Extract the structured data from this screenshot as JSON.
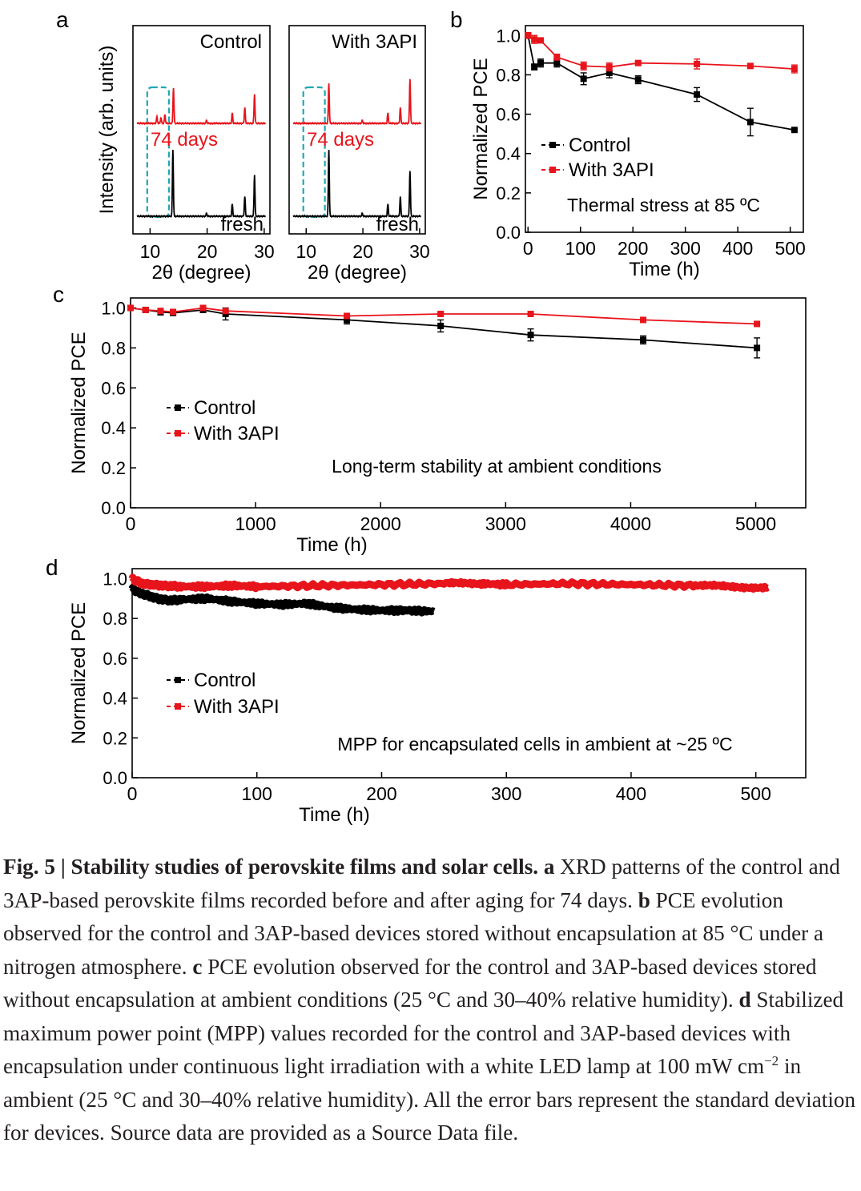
{
  "colors": {
    "control": "#000000",
    "with3api": "#e8141b",
    "highlight": "#22a6b3"
  },
  "panel_labels": {
    "a": "a",
    "b": "b",
    "c": "c",
    "d": "d"
  },
  "chart_data": [
    {
      "panel": "a",
      "type": "line",
      "subtype": "xrd_pattern",
      "title": "Control",
      "xlabel": "2θ (degree)",
      "ylabel": "Intensity (arb. units)",
      "xlim": [
        7,
        31
      ],
      "xticks": [
        "10",
        "20",
        "30"
      ],
      "series": [
        {
          "name": "74 days",
          "label": "74 days",
          "color": "#e8141b",
          "baseline": 1,
          "peaks": [
            [
              11.2,
              0.07
            ],
            [
              11.9,
              0.06
            ],
            [
              12.6,
              0.09
            ],
            [
              14.1,
              0.38
            ],
            [
              19.9,
              0.03
            ],
            [
              24.4,
              0.11
            ],
            [
              26.6,
              0.17
            ],
            [
              28.3,
              0.31
            ]
          ]
        },
        {
          "name": "fresh",
          "label": "fresh",
          "color": "#000000",
          "baseline": 0,
          "peaks": [
            [
              14.0,
              0.7
            ],
            [
              19.9,
              0.03
            ],
            [
              24.4,
              0.13
            ],
            [
              26.6,
              0.21
            ],
            [
              28.3,
              0.44
            ]
          ]
        }
      ],
      "highlight_region": [
        9.5,
        13.3
      ]
    },
    {
      "panel": "a",
      "type": "line",
      "subtype": "xrd_pattern",
      "title": "With 3API",
      "xlabel": "2θ (degree)",
      "xlim": [
        7,
        31
      ],
      "xticks": [
        "10",
        "20",
        "30"
      ],
      "series": [
        {
          "name": "74 days",
          "label": "74 days",
          "color": "#e8141b",
          "baseline": 1,
          "peaks": [
            [
              14.0,
              0.42
            ],
            [
              19.9,
              0.03
            ],
            [
              24.4,
              0.11
            ],
            [
              26.6,
              0.17
            ],
            [
              28.3,
              0.47
            ]
          ]
        },
        {
          "name": "fresh",
          "label": "fresh",
          "color": "#000000",
          "baseline": 0,
          "peaks": [
            [
              14.0,
              0.7
            ],
            [
              19.9,
              0.03
            ],
            [
              24.4,
              0.13
            ],
            [
              26.6,
              0.21
            ],
            [
              28.3,
              0.48
            ]
          ]
        }
      ],
      "highlight_region": [
        9.5,
        13.3
      ]
    },
    {
      "panel": "b",
      "type": "line",
      "xlabel": "Time (h)",
      "ylabel": "Normalized PCE",
      "xlim": [
        -5,
        525
      ],
      "ylim": [
        0,
        1.05
      ],
      "xticks": [
        0,
        100,
        200,
        300,
        400,
        500
      ],
      "yticks": [
        "0.0",
        "0.2",
        "0.4",
        "0.6",
        "0.8",
        "1.0"
      ],
      "annotation": "Thermal stress at 85 ºC",
      "series": [
        {
          "name": "Control",
          "color": "#000000",
          "x": [
            0,
            12,
            24,
            55,
            106,
            155,
            210,
            322,
            424,
            508
          ],
          "y": [
            1.0,
            0.84,
            0.86,
            0.86,
            0.78,
            0.81,
            0.775,
            0.7,
            0.56,
            0.52
          ],
          "err": [
            0.01,
            0.015,
            0.02,
            0.02,
            0.03,
            0.025,
            0.02,
            0.035,
            0.07,
            0.005
          ]
        },
        {
          "name": "With 3API",
          "color": "#e8141b",
          "x": [
            0,
            12,
            24,
            55,
            106,
            155,
            210,
            322,
            424,
            508
          ],
          "y": [
            1.0,
            0.98,
            0.975,
            0.89,
            0.845,
            0.84,
            0.86,
            0.855,
            0.845,
            0.83
          ],
          "err": [
            0.015,
            0.02,
            0.01,
            0.015,
            0.02,
            0.02,
            0.01,
            0.025,
            0.01,
            0.02
          ]
        }
      ]
    },
    {
      "panel": "c",
      "type": "line",
      "xlabel": "Time (h)",
      "ylabel": "Normalized PCE",
      "xlim": [
        0,
        5400
      ],
      "ylim": [
        0,
        1.05
      ],
      "xticks": [
        0,
        1000,
        2000,
        3000,
        4000,
        5000
      ],
      "yticks": [
        "0.0",
        "0.2",
        "0.4",
        "0.6",
        "0.8",
        "1.0"
      ],
      "annotation": "Long-term stability at ambient conditions",
      "series": [
        {
          "name": "Control",
          "color": "#000000",
          "x": [
            0,
            120,
            240,
            340,
            580,
            760,
            1730,
            2480,
            3200,
            4100,
            5010
          ],
          "y": [
            1.0,
            0.99,
            0.98,
            0.975,
            0.99,
            0.97,
            0.94,
            0.91,
            0.865,
            0.84,
            0.8
          ],
          "err": [
            0.01,
            0.01,
            0.015,
            0.01,
            0.01,
            0.03,
            0.02,
            0.03,
            0.03,
            0.02,
            0.05
          ]
        },
        {
          "name": "With 3API",
          "color": "#e8141b",
          "x": [
            0,
            120,
            240,
            340,
            580,
            760,
            1730,
            2480,
            3200,
            4100,
            5010
          ],
          "y": [
            1.0,
            0.99,
            0.985,
            0.98,
            1.0,
            0.985,
            0.96,
            0.97,
            0.97,
            0.94,
            0.92
          ],
          "err": [
            0.005,
            0.005,
            0.005,
            0.005,
            0.005,
            0.005,
            0.005,
            0.005,
            0.005,
            0.005,
            0.005
          ]
        }
      ]
    },
    {
      "panel": "d",
      "type": "line",
      "xlabel": "Time (h)",
      "ylabel": "Normalized PCE",
      "xlim": [
        0,
        540
      ],
      "ylim": [
        0,
        1.05
      ],
      "xticks": [
        0,
        100,
        200,
        300,
        400,
        500
      ],
      "yticks": [
        "0.0",
        "0.2",
        "0.4",
        "0.6",
        "0.8",
        "1.0"
      ],
      "annotation": "MPP for encapsulated cells in ambient  at ~25 ºC",
      "series": [
        {
          "name": "Control",
          "color": "#000000",
          "x": [
            0,
            5,
            10,
            15,
            20,
            30,
            40,
            60,
            80,
            100,
            120,
            140,
            160,
            180,
            200,
            220,
            242
          ],
          "y": [
            0.95,
            0.93,
            0.92,
            0.91,
            0.9,
            0.89,
            0.895,
            0.9,
            0.885,
            0.875,
            0.87,
            0.875,
            0.855,
            0.845,
            0.84,
            0.84,
            0.835
          ]
        },
        {
          "name": "With 3API",
          "color": "#e8141b",
          "x": [
            0,
            3,
            8,
            15,
            25,
            40,
            60,
            80,
            100,
            150,
            200,
            250,
            280,
            300,
            350,
            400,
            450,
            480,
            510
          ],
          "y": [
            1.0,
            0.99,
            0.975,
            0.97,
            0.965,
            0.96,
            0.96,
            0.965,
            0.96,
            0.965,
            0.97,
            0.975,
            0.975,
            0.97,
            0.975,
            0.97,
            0.965,
            0.96,
            0.955
          ]
        }
      ]
    }
  ],
  "caption": {
    "fig_label": "Fig. 5 | Stability studies of perovskite films and solar cells.",
    "a_label": "a",
    "a_text": "XRD patterns of the control and 3AP-based perovskite films recorded before and after aging for 74 days.",
    "b_label": "b",
    "b_text": "PCE evolution observed for the control and 3AP-based devices stored without encapsulation at 85 °C under a nitrogen atmosphere.",
    "c_label": "c",
    "c_text": "PCE evolution observed for the control and 3AP-based devices stored without encapsulation at ambient conditions (25 °C and 30–40% relative humidity).",
    "d_label": "d",
    "d_text_1": "Stabilized maximum power point (MPP) values recorded for the control and 3AP-based devices with encapsulation under continuous light irradiation with a white LED lamp at 100 mW cm",
    "d_sup": "−2",
    "d_text_2": "in ambient (25 °C and 30–40% relative humidity). All the error bars represent the standard deviation for devices. Source data are provided as a Source Data file."
  }
}
